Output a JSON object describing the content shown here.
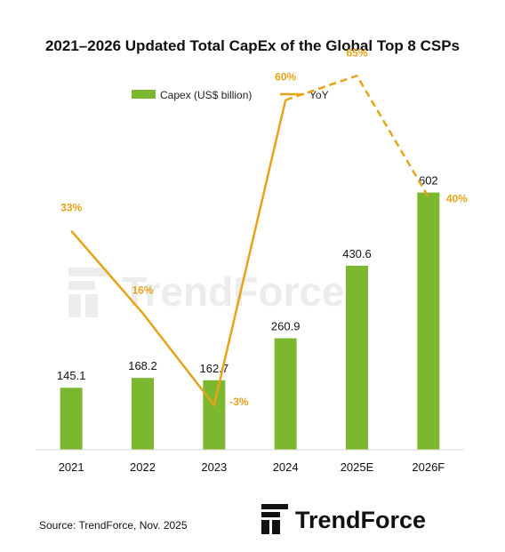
{
  "chart_data": {
    "type": "bar",
    "title": "2021–2026 Updated Total CapEx of the Global Top 8 CSPs",
    "categories": [
      "2021",
      "2022",
      "2023",
      "2024",
      "2025E",
      "2026F"
    ],
    "series": [
      {
        "name": "Capex (US$ billion)",
        "type": "bar",
        "values": [
          145.1,
          168.2,
          162.7,
          260.9,
          430.6,
          602
        ],
        "labels": [
          "145.1",
          "168.2",
          "162.7",
          "260.9",
          "430.6",
          "602"
        ],
        "color": "#7cb82f"
      },
      {
        "name": "YoY",
        "type": "line",
        "values": [
          33,
          16,
          -3,
          60,
          65,
          40
        ],
        "labels": [
          "33%",
          "16%",
          "-3%",
          "60%",
          "65%",
          "40%"
        ],
        "forecast_from_index": 3,
        "color": "#e8a317"
      }
    ],
    "xlabel": "",
    "ylabel": "",
    "bar_ylim": [
      0,
      780
    ],
    "yoy_ylim": [
      -10,
      80
    ],
    "grid": false,
    "legend_position": "top"
  },
  "source": "Source: TrendForce, Nov. 2025",
  "brand": {
    "name": "TrendForce",
    "watermark": "TrendForce",
    "color": "#111111"
  }
}
